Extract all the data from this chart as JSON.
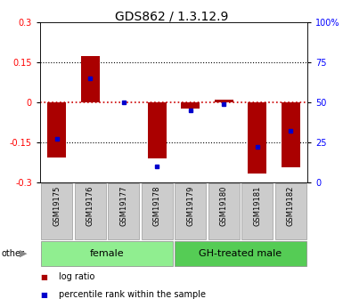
{
  "title": "GDS862 / 1.3.12.9",
  "samples": [
    "GSM19175",
    "GSM19176",
    "GSM19177",
    "GSM19178",
    "GSM19179",
    "GSM19180",
    "GSM19181",
    "GSM19182"
  ],
  "log_ratios": [
    -0.205,
    0.175,
    0.0,
    -0.21,
    -0.022,
    0.01,
    -0.265,
    -0.242
  ],
  "percentile_ranks": [
    27,
    65,
    50,
    10,
    45,
    49,
    22,
    32
  ],
  "groups": [
    {
      "label": "female",
      "start": 0,
      "end": 4,
      "color": "#90EE90"
    },
    {
      "label": "GH-treated male",
      "start": 4,
      "end": 8,
      "color": "#55CC55"
    }
  ],
  "bar_color": "#AA0000",
  "dot_color": "#0000CC",
  "ylim": [
    -0.3,
    0.3
  ],
  "yticks_left": [
    -0.3,
    -0.15,
    0,
    0.15,
    0.3
  ],
  "yticks_right": [
    0,
    25,
    50,
    75,
    100
  ],
  "hline_color": "#CC0000",
  "dotted_line_color": "#000000",
  "bar_width": 0.55,
  "title_fontsize": 10,
  "tick_fontsize": 7,
  "sample_fontsize": 6,
  "group_fontsize": 8,
  "legend_fontsize": 7,
  "other_label": "other"
}
